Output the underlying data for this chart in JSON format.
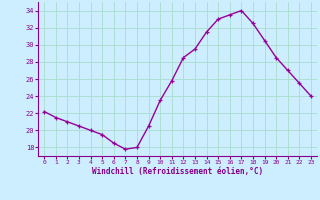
{
  "x": [
    0,
    1,
    2,
    3,
    4,
    5,
    6,
    7,
    8,
    9,
    10,
    11,
    12,
    13,
    14,
    15,
    16,
    17,
    18,
    19,
    20,
    21,
    22,
    23
  ],
  "y": [
    22.2,
    21.5,
    21.0,
    20.5,
    20.0,
    19.5,
    18.5,
    17.8,
    18.0,
    20.5,
    23.5,
    25.8,
    28.5,
    29.5,
    31.5,
    33.0,
    33.5,
    34.0,
    32.5,
    30.5,
    28.5,
    27.0,
    25.5,
    24.0
  ],
  "line_color": "#990099",
  "marker": "+",
  "background_color": "#cceeff",
  "grid_color": "#aaddcc",
  "xlabel": "Windchill (Refroidissement éolien,°C)",
  "xlim": [
    -0.5,
    23.5
  ],
  "ylim": [
    17,
    35
  ],
  "yticks": [
    18,
    20,
    22,
    24,
    26,
    28,
    30,
    32,
    34
  ],
  "xticks": [
    0,
    1,
    2,
    3,
    4,
    5,
    6,
    7,
    8,
    9,
    10,
    11,
    12,
    13,
    14,
    15,
    16,
    17,
    18,
    19,
    20,
    21,
    22,
    23
  ],
  "tick_label_color": "#880088",
  "xlabel_color": "#880088",
  "axis_color": "#880088",
  "linewidth": 1.0,
  "markersize": 3.5
}
